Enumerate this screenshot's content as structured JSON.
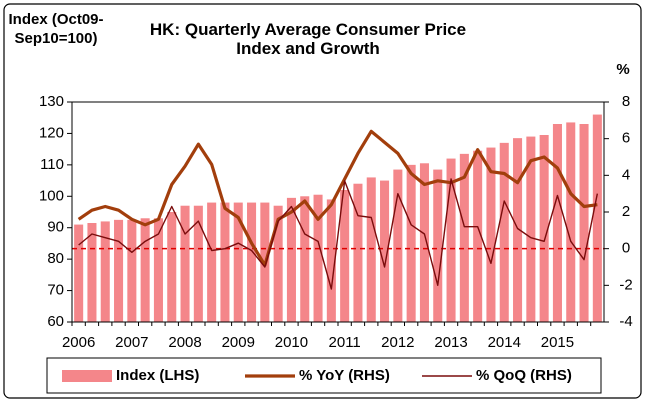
{
  "chart_data": {
    "type": "bar",
    "title": "HK: Quarterly Average Consumer Price Index and Growth",
    "y_label": "Index (Oct09-Sep10=100)",
    "y2_label": "%",
    "categories": [
      "2006",
      null,
      null,
      null,
      "2007",
      null,
      null,
      null,
      "2008",
      null,
      null,
      null,
      "2009",
      null,
      null,
      null,
      "2010",
      null,
      null,
      null,
      "2011",
      null,
      null,
      null,
      "2012",
      null,
      null,
      null,
      "2013",
      null,
      null,
      null,
      "2014",
      null,
      null,
      null,
      "2015",
      null,
      null,
      null
    ],
    "series": [
      {
        "name": "Index (LHS)",
        "type": "bar",
        "axis": "y",
        "color": "#f4868a",
        "values": [
          91,
          91.5,
          92,
          92.5,
          92.5,
          93,
          93,
          95,
          97,
          97,
          98,
          98,
          98,
          98,
          98,
          97,
          99.5,
          100,
          100.5,
          99,
          102,
          104,
          106,
          105,
          108.5,
          110,
          110.5,
          108.5,
          112,
          113.5,
          114.5,
          115.5,
          117,
          118.5,
          119,
          119.5,
          123,
          123.5,
          123,
          126
        ]
      },
      {
        "name": "% YoY (RHS)",
        "type": "line",
        "axis": "y2",
        "color": "#a23e0c",
        "line_width": 3.2,
        "values": [
          1.6,
          2.1,
          2.3,
          2.1,
          1.6,
          1.3,
          1.6,
          3.5,
          4.5,
          5.7,
          4.6,
          2.2,
          1.7,
          0.3,
          -0.9,
          1.6,
          2.0,
          2.6,
          1.6,
          2.4,
          3.8,
          5.2,
          6.4,
          5.8,
          5.2,
          4.1,
          3.5,
          3.7,
          3.6,
          3.9,
          5.4,
          4.2,
          4.1,
          3.6,
          4.8,
          5.0,
          4.4,
          3.0,
          2.3,
          2.4
        ]
      },
      {
        "name": "% QoQ (RHS)",
        "type": "line",
        "axis": "y2",
        "color": "#7a0c0c",
        "line_width": 1.4,
        "values": [
          0.2,
          0.8,
          0.6,
          0.4,
          -0.2,
          0.4,
          0.8,
          2.3,
          0.8,
          1.5,
          -0.1,
          0.0,
          0.3,
          -0.1,
          -1.0,
          1.5,
          2.3,
          0.8,
          0.4,
          -2.2,
          3.7,
          1.8,
          1.7,
          -1.0,
          3.0,
          1.3,
          0.8,
          -2.0,
          3.8,
          1.2,
          1.2,
          -0.8,
          2.6,
          1.1,
          0.6,
          0.4,
          2.9,
          0.4,
          -0.6,
          3.0
        ]
      }
    ],
    "ylim": [
      60,
      130
    ],
    "yticks": [
      60,
      70,
      80,
      90,
      100,
      110,
      120,
      130
    ],
    "y2lim": [
      -4,
      8
    ],
    "y2ticks": [
      -4,
      -2,
      0,
      2,
      4,
      6,
      8
    ],
    "zero_line_color": "#e00000",
    "legend": "bottom"
  }
}
